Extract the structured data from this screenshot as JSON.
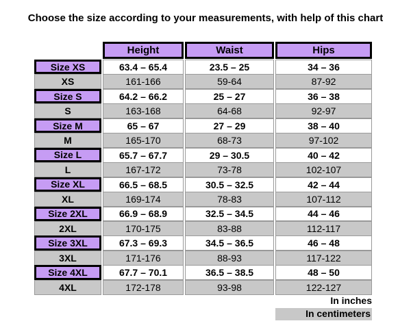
{
  "header": {
    "title": "Choose the size according to your measurements, with help of this chart"
  },
  "table": {
    "columns": [
      "Height",
      "Waist",
      "Hips"
    ],
    "rows": [
      {
        "label": "Size XS",
        "cells": [
          "63.4 – 65.4",
          "23.5 – 25",
          "34 – 36"
        ]
      },
      {
        "label": "XS",
        "cells": [
          "161-166",
          "59-64",
          "87-92"
        ]
      },
      {
        "label": "Size S",
        "cells": [
          "64.2 – 66.2",
          "25 – 27",
          "36 – 38"
        ]
      },
      {
        "label": "S",
        "cells": [
          "163-168",
          "64-68",
          "92-97"
        ]
      },
      {
        "label": "Size M",
        "cells": [
          "65 – 67",
          "27 – 29",
          "38 – 40"
        ]
      },
      {
        "label": "M",
        "cells": [
          "165-170",
          "68-73",
          "97-102"
        ]
      },
      {
        "label": "Size L",
        "cells": [
          "65.7 – 67.7",
          "29 – 30.5",
          "40 – 42"
        ]
      },
      {
        "label": "L",
        "cells": [
          "167-172",
          "73-78",
          "102-107"
        ]
      },
      {
        "label": "Size XL",
        "cells": [
          "66.5 – 68.5",
          "30.5 – 32.5",
          "42 – 44"
        ]
      },
      {
        "label": "XL",
        "cells": [
          "169-174",
          "78-83",
          "107-112"
        ]
      },
      {
        "label": "Size 2XL",
        "cells": [
          "66.9 – 68.9",
          "32.5 – 34.5",
          "44 – 46"
        ]
      },
      {
        "label": "2XL",
        "cells": [
          "170-175",
          "83-88",
          "112-117"
        ]
      },
      {
        "label": "Size 3XL",
        "cells": [
          "67.3 – 69.3",
          "34.5 – 36.5",
          "46 – 48"
        ]
      },
      {
        "label": "3XL",
        "cells": [
          "171-176",
          "88-93",
          "117-122"
        ]
      },
      {
        "label": "Size 4XL",
        "cells": [
          "67.7 – 70.1",
          "36.5 – 38.5",
          "48 – 50"
        ]
      },
      {
        "label": "4XL",
        "cells": [
          "172-178",
          "93-98",
          "122-127"
        ]
      }
    ]
  },
  "legend": {
    "inches": "In inches",
    "centimeters": "In centimeters"
  }
}
